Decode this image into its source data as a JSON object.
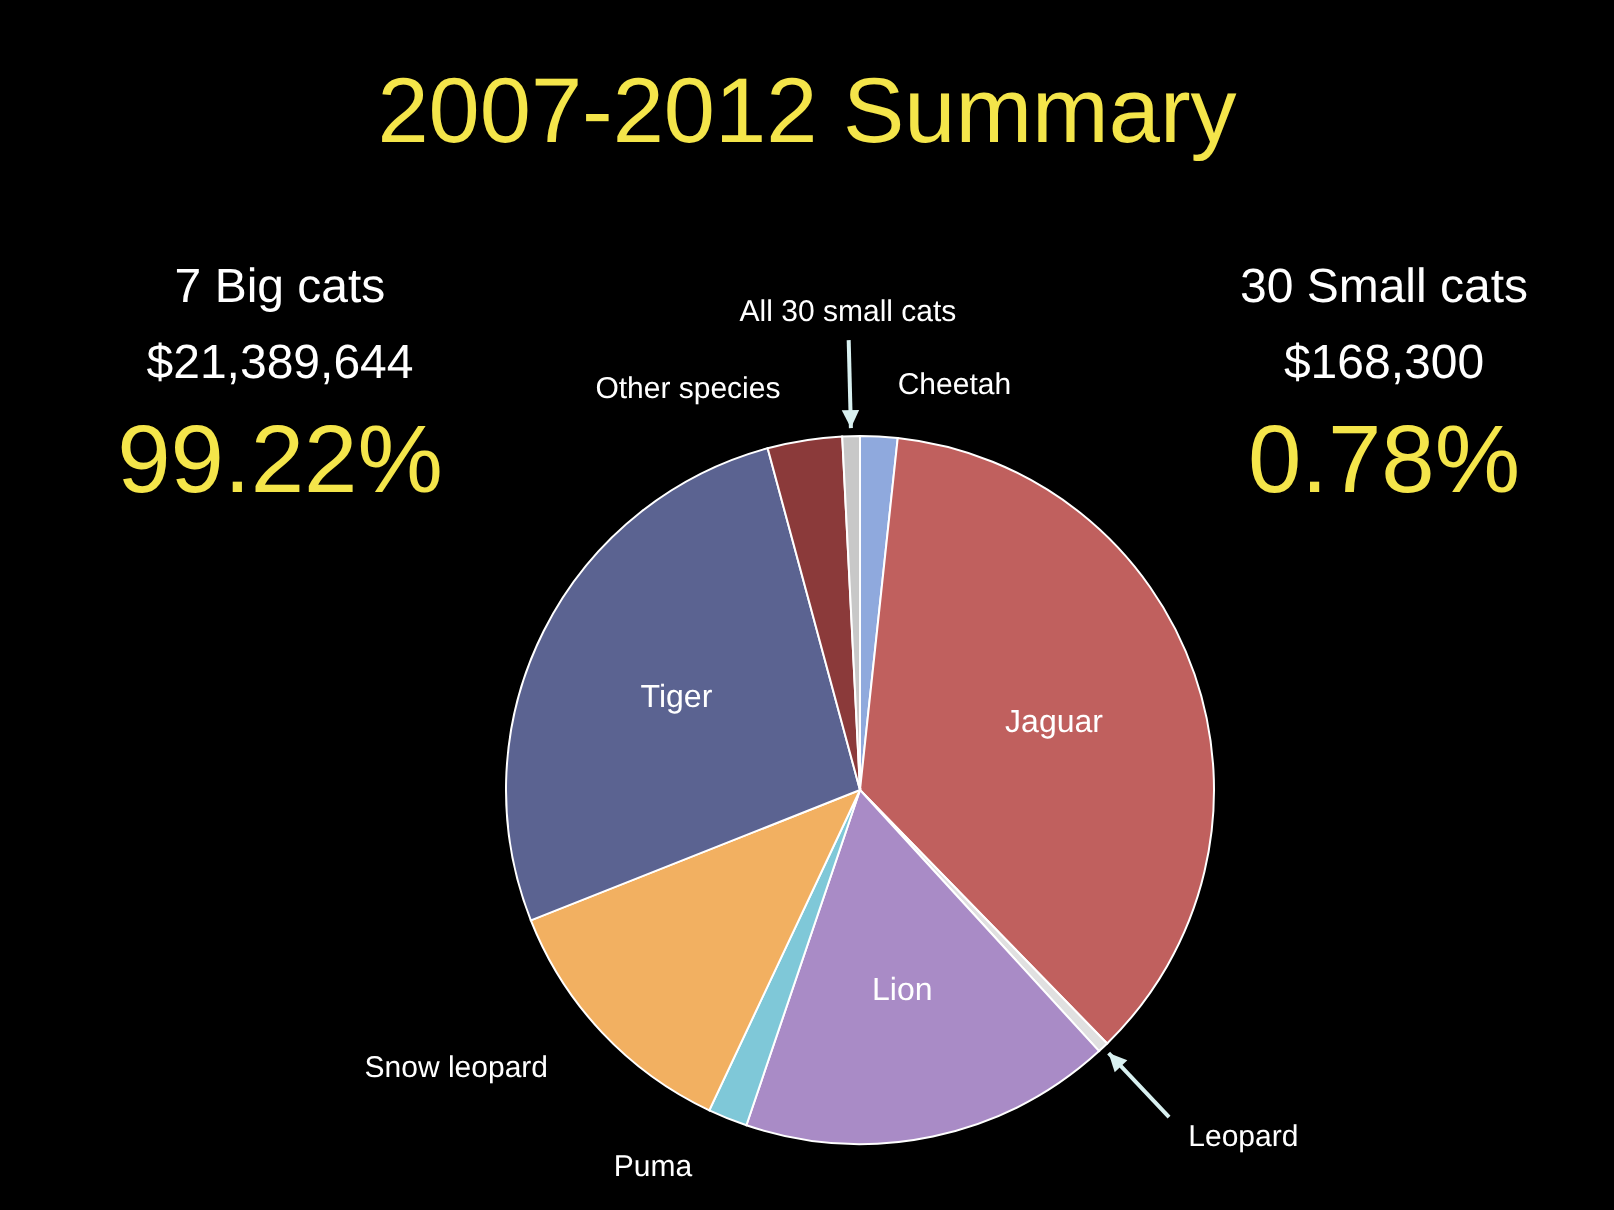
{
  "chart_data": {
    "type": "pie",
    "title": "2007-2012 Summary",
    "categories": [
      "Cheetah",
      "Jaguar",
      "Leopard",
      "Lion",
      "Puma",
      "Snow leopard",
      "Tiger",
      "Other species",
      "All 30 small cats"
    ],
    "values": [
      1.7,
      36,
      0.5,
      17,
      1.8,
      12,
      26.8,
      3.4,
      0.8
    ],
    "colors": [
      "#8fa9dd",
      "#c0605e",
      "#e0e0e0",
      "#a98bc6",
      "#7fc8d8",
      "#f2b061",
      "#5b6391",
      "#8b3a3a",
      "#c8c8c8"
    ],
    "annotations": [
      "7 Big cats",
      "$21,389,644",
      "99.22%",
      "30 Small cats",
      "$168,300",
      "0.78%"
    ]
  }
}
